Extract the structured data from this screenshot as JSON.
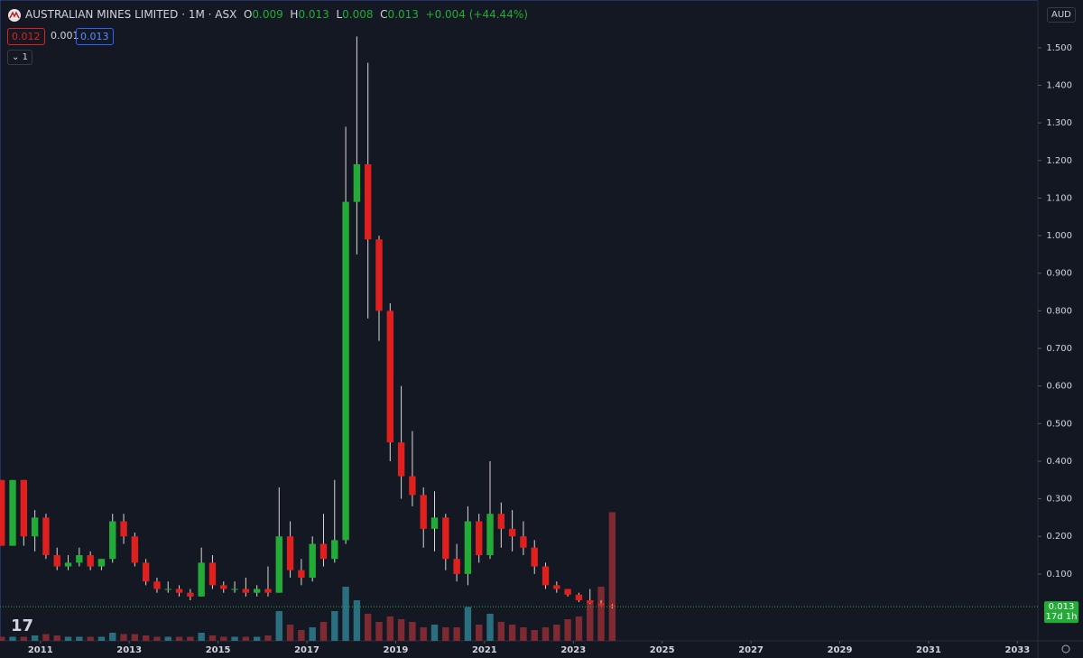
{
  "header": {
    "symbol": "AUSTRALIAN MINES LIMITED · 1M · ASX",
    "o_label": "O",
    "o": 0.009,
    "h_label": "H",
    "h": 0.013,
    "l_label": "L",
    "l": 0.008,
    "c_label": "C",
    "c": 0.013,
    "change": "+0.004 (+44.44%)",
    "bid": 0.012,
    "spread": 0.001,
    "ask": 0.013,
    "indicators": 1,
    "currency": "AUD"
  },
  "chart_data": {
    "type": "candlestick",
    "x": [
      2010.125,
      2010.375,
      2010.625,
      2010.875,
      2011.125,
      2011.375,
      2011.625,
      2011.875,
      2012.125,
      2012.375,
      2012.625,
      2012.875,
      2013.125,
      2013.375,
      2013.625,
      2013.875,
      2014.125,
      2014.375,
      2014.625,
      2014.875,
      2015.125,
      2015.375,
      2015.625,
      2015.875,
      2016.125,
      2016.375,
      2016.625,
      2016.875,
      2017.125,
      2017.375,
      2017.625,
      2017.875,
      2018.125,
      2018.375,
      2018.625,
      2018.875,
      2019.125,
      2019.375,
      2019.625,
      2019.875,
      2020.125,
      2020.375,
      2020.625,
      2020.875,
      2021.125,
      2021.375,
      2021.625,
      2021.875,
      2022.125,
      2022.375,
      2022.625,
      2022.875,
      2023.125,
      2023.375,
      2023.625,
      2023.875
    ],
    "open": [
      0.35,
      0.175,
      0.35,
      0.2,
      0.25,
      0.15,
      0.12,
      0.13,
      0.15,
      0.12,
      0.14,
      0.24,
      0.2,
      0.13,
      0.08,
      0.06,
      0.06,
      0.05,
      0.04,
      0.13,
      0.07,
      0.06,
      0.06,
      0.05,
      0.06,
      0.05,
      0.2,
      0.11,
      0.09,
      0.18,
      0.14,
      0.19,
      1.09,
      1.19,
      0.99,
      0.8,
      0.45,
      0.36,
      0.31,
      0.22,
      0.25,
      0.14,
      0.1,
      0.24,
      0.15,
      0.26,
      0.22,
      0.2,
      0.17,
      0.12,
      0.07,
      0.06,
      0.045,
      0.03,
      0.022,
      0.016
    ],
    "high": [
      0.35,
      0.35,
      0.35,
      0.27,
      0.26,
      0.17,
      0.15,
      0.17,
      0.16,
      0.14,
      0.26,
      0.26,
      0.21,
      0.14,
      0.09,
      0.08,
      0.07,
      0.06,
      0.17,
      0.15,
      0.08,
      0.08,
      0.09,
      0.07,
      0.12,
      0.33,
      0.24,
      0.14,
      0.2,
      0.26,
      0.35,
      1.29,
      1.53,
      1.46,
      1.0,
      0.82,
      0.6,
      0.48,
      0.33,
      0.32,
      0.26,
      0.18,
      0.28,
      0.26,
      0.4,
      0.29,
      0.27,
      0.24,
      0.19,
      0.13,
      0.08,
      0.06,
      0.05,
      0.06,
      0.03,
      0.02
    ],
    "low": [
      0.175,
      0.175,
      0.175,
      0.16,
      0.14,
      0.11,
      0.11,
      0.12,
      0.11,
      0.11,
      0.13,
      0.18,
      0.12,
      0.07,
      0.05,
      0.05,
      0.04,
      0.03,
      0.04,
      0.06,
      0.05,
      0.05,
      0.04,
      0.04,
      0.04,
      0.05,
      0.09,
      0.07,
      0.08,
      0.12,
      0.13,
      0.18,
      0.95,
      0.78,
      0.72,
      0.4,
      0.3,
      0.28,
      0.17,
      0.16,
      0.11,
      0.08,
      0.07,
      0.13,
      0.14,
      0.17,
      0.16,
      0.15,
      0.1,
      0.06,
      0.05,
      0.04,
      0.025,
      0.02,
      0.015,
      0.008
    ],
    "close": [
      0.175,
      0.35,
      0.2,
      0.25,
      0.15,
      0.12,
      0.13,
      0.15,
      0.12,
      0.14,
      0.24,
      0.2,
      0.13,
      0.08,
      0.06,
      0.06,
      0.05,
      0.04,
      0.13,
      0.07,
      0.06,
      0.06,
      0.05,
      0.06,
      0.05,
      0.2,
      0.11,
      0.09,
      0.18,
      0.14,
      0.19,
      1.09,
      1.19,
      0.99,
      0.8,
      0.45,
      0.36,
      0.31,
      0.22,
      0.25,
      0.14,
      0.1,
      0.24,
      0.15,
      0.26,
      0.22,
      0.2,
      0.17,
      0.12,
      0.07,
      0.06,
      0.045,
      0.03,
      0.022,
      0.016,
      0.013
    ],
    "volume": [
      3,
      3,
      3,
      4,
      5,
      4,
      3,
      3,
      3,
      3,
      6,
      5,
      5,
      4,
      3,
      3,
      3,
      3,
      6,
      4,
      3,
      3,
      3,
      3,
      4,
      22,
      12,
      8,
      10,
      14,
      22,
      40,
      30,
      20,
      14,
      18,
      16,
      14,
      10,
      12,
      10,
      10,
      25,
      12,
      20,
      14,
      12,
      10,
      8,
      10,
      12,
      16,
      18,
      30,
      40,
      95
    ],
    "up_color": "#22ab36",
    "down_color": "#e0201e",
    "up_volume_color": "#2a6f80",
    "down_volume_color": "#7e2a33",
    "ylim": [
      -0.078,
      1.627
    ],
    "yticks": [
      {
        "value": 0.1,
        "label": "0.100"
      },
      {
        "value": 0.2,
        "label": "0.200"
      },
      {
        "value": 0.3,
        "label": "0.300"
      },
      {
        "value": 0.4,
        "label": "0.400"
      },
      {
        "value": 0.5,
        "label": "0.500"
      },
      {
        "value": 0.6,
        "label": "0.600"
      },
      {
        "value": 0.7,
        "label": "0.700"
      },
      {
        "value": 0.8,
        "label": "0.800"
      },
      {
        "value": 0.9,
        "label": "0.900"
      },
      {
        "value": 1.0,
        "label": "1.000"
      },
      {
        "value": 1.1,
        "label": "1.100"
      },
      {
        "value": 1.2,
        "label": "1.200"
      },
      {
        "value": 1.3,
        "label": "1.300"
      },
      {
        "value": 1.4,
        "label": "1.400"
      },
      {
        "value": 1.5,
        "label": "1.500"
      }
    ],
    "xlim": [
      2010.09,
      2033.46
    ],
    "xticks": [
      2011,
      2013,
      2015,
      2017,
      2019,
      2021,
      2023,
      2025,
      2027,
      2029,
      2031,
      2033
    ],
    "volume_lim": [
      0,
      100
    ],
    "last_price": 0.013,
    "countdown": "17d 1h"
  }
}
